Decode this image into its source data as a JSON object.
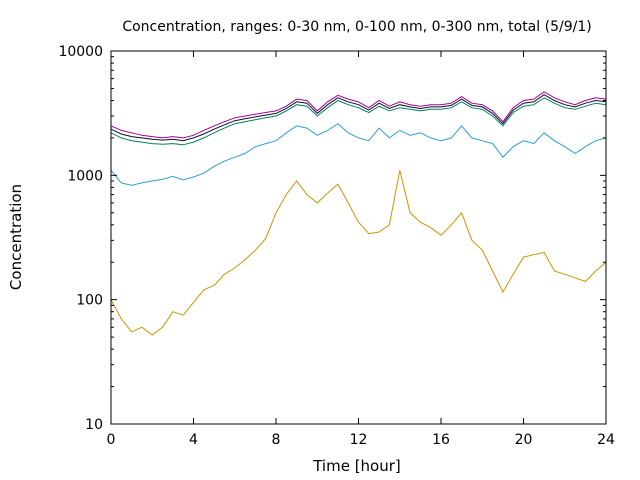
{
  "chart_data": {
    "type": "line",
    "title": "Concentration, ranges: 0-30 nm, 0-100 nm, 0-300 nm, total (5/9/1)",
    "xlabel": "Time [hour]",
    "ylabel": "Concentration",
    "x_ticks": [
      "0",
      "4",
      "8",
      "12",
      "16",
      "20",
      "24"
    ],
    "y_ticks": [
      "10",
      "100",
      "1000",
      "10000"
    ],
    "xlim": [
      0,
      24
    ],
    "ylim": [
      10,
      10000
    ],
    "y_scale": "log",
    "grid": false,
    "legend": "none",
    "x": [
      0,
      0.5,
      1,
      1.5,
      2,
      2.5,
      3,
      3.5,
      4,
      4.5,
      5,
      5.5,
      6,
      6.5,
      7,
      7.5,
      8,
      8.5,
      9,
      9.5,
      10,
      10.5,
      11,
      11.5,
      12,
      12.5,
      13,
      13.5,
      14,
      14.5,
      15,
      15.5,
      16,
      16.5,
      17,
      17.5,
      18,
      18.5,
      19,
      19.5,
      20,
      20.5,
      21,
      21.5,
      22,
      22.5,
      23,
      23.5,
      24
    ],
    "series": [
      {
        "color": "#c89600",
        "values": [
          100,
          70,
          55,
          60,
          52,
          60,
          80,
          75,
          95,
          120,
          130,
          160,
          180,
          210,
          250,
          310,
          500,
          700,
          900,
          700,
          600,
          720,
          850,
          600,
          420,
          340,
          350,
          400,
          1100,
          500,
          420,
          380,
          330,
          400,
          500,
          300,
          250,
          170,
          115,
          160,
          220,
          230,
          240,
          170,
          160,
          150,
          140,
          170,
          200
        ]
      },
      {
        "color": "#2c9ed8",
        "values": [
          1100,
          870,
          830,
          870,
          900,
          930,
          980,
          920,
          970,
          1040,
          1180,
          1300,
          1400,
          1500,
          1700,
          1800,
          1900,
          2200,
          2500,
          2400,
          2100,
          2300,
          2600,
          2200,
          2000,
          1900,
          2400,
          2000,
          2300,
          2100,
          2200,
          2000,
          1900,
          2000,
          2500,
          2000,
          1900,
          1800,
          1400,
          1700,
          1900,
          1800,
          2200,
          1900,
          1700,
          1500,
          1700,
          1900,
          2000
        ]
      },
      {
        "color": "#008060",
        "values": [
          2200,
          2000,
          1900,
          1850,
          1800,
          1780,
          1800,
          1760,
          1850,
          2000,
          2200,
          2400,
          2600,
          2700,
          2800,
          2900,
          3000,
          3300,
          3700,
          3600,
          3000,
          3500,
          4000,
          3700,
          3500,
          3200,
          3600,
          3300,
          3500,
          3400,
          3300,
          3400,
          3400,
          3500,
          3900,
          3500,
          3400,
          3000,
          2500,
          3200,
          3600,
          3700,
          4200,
          3800,
          3500,
          3400,
          3600,
          3800,
          3700
        ]
      },
      {
        "color": "#101020",
        "values": [
          2350,
          2150,
          2050,
          2000,
          1950,
          1920,
          1950,
          1900,
          2000,
          2150,
          2350,
          2550,
          2750,
          2850,
          2950,
          3050,
          3150,
          3450,
          3900,
          3800,
          3150,
          3700,
          4200,
          3900,
          3700,
          3350,
          3800,
          3450,
          3700,
          3550,
          3450,
          3550,
          3550,
          3650,
          4100,
          3650,
          3550,
          3150,
          2600,
          3350,
          3800,
          3900,
          4450,
          4000,
          3700,
          3550,
          3800,
          4000,
          3900
        ]
      },
      {
        "color": "#a000a0",
        "values": [
          2500,
          2300,
          2200,
          2100,
          2050,
          2000,
          2050,
          2000,
          2100,
          2300,
          2500,
          2700,
          2900,
          3000,
          3100,
          3200,
          3300,
          3600,
          4100,
          4000,
          3300,
          3900,
          4400,
          4100,
          3900,
          3500,
          4000,
          3600,
          3900,
          3700,
          3600,
          3700,
          3700,
          3800,
          4300,
          3800,
          3700,
          3300,
          2700,
          3500,
          4000,
          4100,
          4700,
          4200,
          3900,
          3700,
          4000,
          4200,
          4100
        ]
      }
    ]
  }
}
